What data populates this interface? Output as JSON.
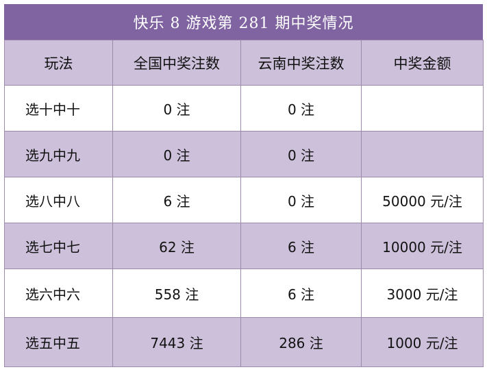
{
  "title": "快乐 8 游戏第 281 期中奖情况",
  "columns": [
    "玩法",
    "全国中奖注数",
    "云南中奖注数",
    "中奖金额"
  ],
  "rows": [
    {
      "play": "选十中十",
      "national": "0 注",
      "yunnan": "0 注",
      "prize": ""
    },
    {
      "play": "选九中九",
      "national": "0 注",
      "yunnan": "0 注",
      "prize": ""
    },
    {
      "play": "选八中八",
      "national": "6 注",
      "yunnan": "0 注",
      "prize": "50000 元/注"
    },
    {
      "play": "选七中七",
      "national": "62 注",
      "yunnan": "6 注",
      "prize": "10000 元/注"
    },
    {
      "play": "选六中六",
      "national": "558 注",
      "yunnan": "6 注",
      "prize": "3000 元/注"
    },
    {
      "play": "选五中五",
      "national": "7443 注",
      "yunnan": "286 注",
      "prize": "1000 元/注"
    }
  ],
  "colors": {
    "title_bg": "#8064a2",
    "band_bg": "#ccc0da",
    "border": "#9b8aab"
  }
}
